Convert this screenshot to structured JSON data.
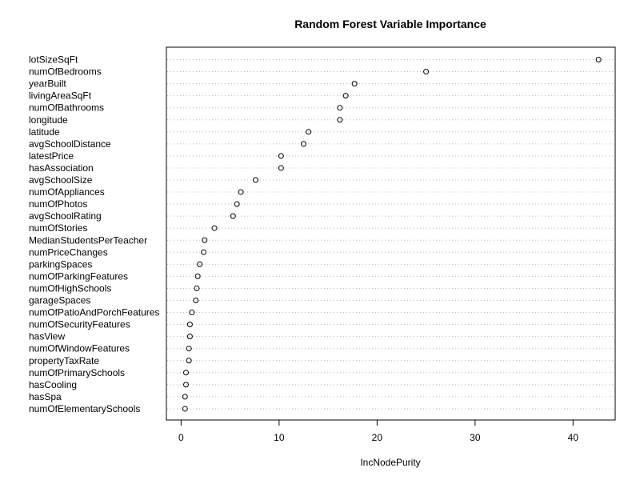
{
  "chart_data": {
    "type": "scatter",
    "title": "Random Forest Variable Importance",
    "xlabel": "IncNodePurity",
    "ylabel": "",
    "xlim": [
      -1.5,
      44.3
    ],
    "xticks": [
      "0",
      "10",
      "20",
      "30",
      "40"
    ],
    "grid": "dotted horizontal lines per variable",
    "legend": "none",
    "marker_color": "#000000",
    "categories": [
      "lotSizeSqFt",
      "numOfBedrooms",
      "yearBuilt",
      "livingAreaSqFt",
      "numOfBathrooms",
      "longitude",
      "latitude",
      "avgSchoolDistance",
      "latestPrice",
      "hasAssociation",
      "avgSchoolSize",
      "numOfAppliances",
      "numOfPhotos",
      "avgSchoolRating",
      "numOfStories",
      "MedianStudentsPerTeacher",
      "numPriceChanges",
      "parkingSpaces",
      "numOfParkingFeatures",
      "numOfHighSchools",
      "garageSpaces",
      "numOfPatioAndPorchFeatures",
      "numOfSecurityFeatures",
      "hasView",
      "numOfWindowFeatures",
      "propertyTaxRate",
      "numOfPrimarySchools",
      "hasCooling",
      "hasSpa",
      "numOfElementarySchools"
    ],
    "values": [
      42.6,
      25.0,
      17.7,
      16.8,
      16.2,
      16.2,
      13.0,
      12.5,
      10.2,
      10.2,
      7.6,
      6.1,
      5.7,
      5.3,
      3.4,
      2.4,
      2.3,
      1.9,
      1.7,
      1.6,
      1.5,
      1.1,
      0.9,
      0.9,
      0.8,
      0.8,
      0.5,
      0.5,
      0.4,
      0.4
    ]
  }
}
